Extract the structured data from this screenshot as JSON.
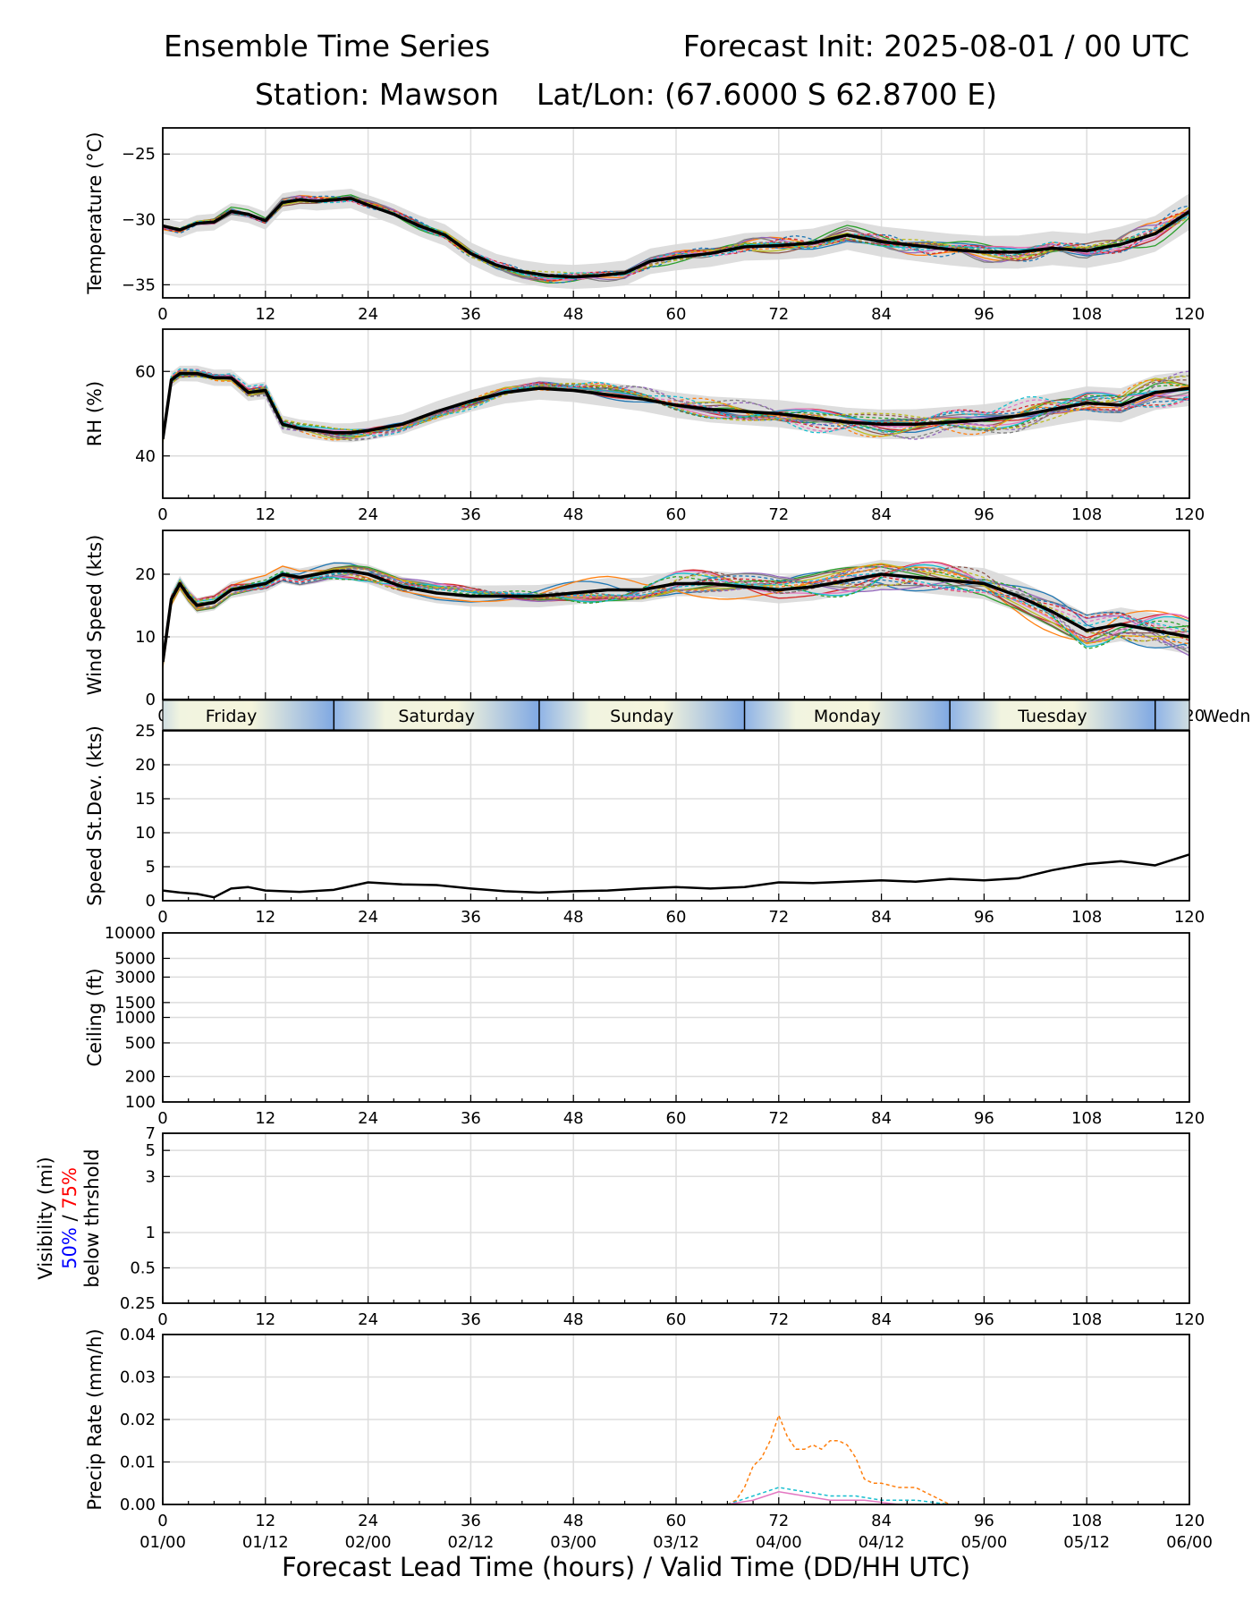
{
  "header": {
    "title_left": "Ensemble Time Series",
    "title_right": "Forecast Init: 2025-08-01 / 00 UTC",
    "station": "Station: Mawson",
    "latlon": "Lat/Lon: (67.6000 S 62.8700 E)"
  },
  "xlabel": "Forecast Lead Time (hours) / Valid Time (DD/HH UTC)",
  "day_band": {
    "labels": [
      "Friday",
      "Saturday",
      "Sunday",
      "Monday",
      "Tuesday",
      "Wedn"
    ],
    "boundaries_hours": [
      20,
      44,
      68,
      92,
      116
    ]
  },
  "colors": {
    "mean": "#000000",
    "spread": "#d9d9d9",
    "members": [
      "#1f77b4",
      "#ff7f0e",
      "#2ca02c",
      "#d62728",
      "#9467bd",
      "#8c564b",
      "#e377c2",
      "#7f7f7f",
      "#bcbd22",
      "#17becf"
    ],
    "vis_50": "#0000ff",
    "vis_75": "#ff0000"
  },
  "chart_data": [
    {
      "type": "line",
      "ylabel": "Temperature (°C)",
      "xlim": [
        0,
        120
      ],
      "ylim": [
        -36,
        -23
      ],
      "yticks": [
        -25,
        -30,
        -35
      ],
      "xticks": [
        0,
        12,
        24,
        36,
        48,
        60,
        72,
        84,
        96,
        108,
        120
      ],
      "grid": true,
      "mean": {
        "x": [
          0,
          2,
          4,
          6,
          8,
          10,
          12,
          14,
          16,
          18,
          20,
          22,
          24,
          27,
          30,
          33,
          36,
          39,
          42,
          45,
          48,
          51,
          54,
          57,
          60,
          64,
          68,
          72,
          76,
          80,
          84,
          88,
          92,
          96,
          100,
          104,
          108,
          112,
          116,
          120
        ],
        "y": [
          -30.5,
          -30.8,
          -30.3,
          -30.2,
          -29.4,
          -29.6,
          -30.1,
          -28.7,
          -28.5,
          -28.6,
          -28.5,
          -28.4,
          -28.9,
          -29.6,
          -30.5,
          -31.2,
          -32.6,
          -33.5,
          -34.0,
          -34.3,
          -34.4,
          -34.3,
          -34.1,
          -33.2,
          -32.9,
          -32.6,
          -32.1,
          -32.0,
          -31.8,
          -31.2,
          -31.7,
          -32.0,
          -32.3,
          -32.5,
          -32.5,
          -32.2,
          -32.4,
          -31.9,
          -31.1,
          -29.4
        ]
      },
      "spread_halfwidth": 1.0
    },
    {
      "type": "line",
      "ylabel": "RH (%)",
      "xlim": [
        0,
        120
      ],
      "ylim": [
        30,
        70
      ],
      "yticks": [
        40,
        60
      ],
      "xticks": [
        0,
        12,
        24,
        36,
        48,
        60,
        72,
        84,
        96,
        108,
        120
      ],
      "grid": true,
      "mean": {
        "x": [
          0,
          1,
          2,
          4,
          6,
          8,
          10,
          12,
          14,
          16,
          18,
          20,
          22,
          24,
          28,
          32,
          36,
          40,
          44,
          48,
          52,
          56,
          60,
          64,
          68,
          72,
          76,
          80,
          84,
          88,
          92,
          96,
          100,
          104,
          108,
          112,
          116,
          120
        ],
        "y": [
          44,
          58,
          59.5,
          59.5,
          58.5,
          58.5,
          55,
          55.5,
          47.5,
          46.5,
          46,
          45.5,
          45.5,
          46,
          47.5,
          50.5,
          53,
          55,
          56,
          55.5,
          54.5,
          53.5,
          52,
          51,
          50.5,
          50,
          49,
          48,
          47.5,
          47.5,
          48,
          48.5,
          49.5,
          51,
          52.5,
          52,
          55,
          56
        ]
      },
      "spread_halfwidth": 3.0
    },
    {
      "type": "line",
      "ylabel": "Wind Speed (kts)",
      "xlim": [
        0,
        120
      ],
      "ylim": [
        0,
        27
      ],
      "yticks": [
        0,
        10,
        20
      ],
      "xticks": [
        0,
        12,
        24,
        36,
        48,
        60,
        72,
        84,
        96,
        108,
        120
      ],
      "grid": true,
      "mean": {
        "x": [
          0,
          1,
          2,
          3,
          4,
          6,
          8,
          10,
          12,
          14,
          16,
          18,
          20,
          22,
          24,
          28,
          32,
          36,
          40,
          44,
          48,
          52,
          56,
          60,
          64,
          68,
          72,
          76,
          80,
          84,
          88,
          92,
          96,
          100,
          104,
          108,
          112,
          116,
          120
        ],
        "y": [
          6,
          16,
          18.5,
          16.5,
          15,
          15.5,
          17.5,
          18,
          18.5,
          20,
          19.5,
          20,
          20.5,
          20.5,
          20,
          18,
          17,
          16.5,
          16.5,
          16.5,
          17,
          17.5,
          17.5,
          18.5,
          18.5,
          18,
          17.5,
          18,
          19,
          20,
          19.5,
          19,
          18.5,
          16.5,
          14,
          11,
          12,
          11,
          10
        ]
      },
      "spread_halfwidth": 2.0
    },
    {
      "type": "line",
      "ylabel": "Speed St.Dev. (kts)",
      "xlim": [
        0,
        120
      ],
      "ylim": [
        0,
        25
      ],
      "yticks": [
        0,
        5,
        10,
        15,
        20,
        25
      ],
      "xticks": [
        0,
        12,
        24,
        36,
        48,
        60,
        72,
        84,
        96,
        108,
        120
      ],
      "grid": true,
      "mean": {
        "x": [
          0,
          2,
          4,
          6,
          8,
          10,
          12,
          16,
          20,
          24,
          28,
          32,
          36,
          40,
          44,
          48,
          52,
          56,
          60,
          64,
          68,
          72,
          76,
          80,
          84,
          88,
          92,
          96,
          100,
          104,
          108,
          112,
          116,
          120
        ],
        "y": [
          1.5,
          1.2,
          1.0,
          0.5,
          1.8,
          2.0,
          1.5,
          1.3,
          1.6,
          2.7,
          2.4,
          2.3,
          1.8,
          1.4,
          1.2,
          1.4,
          1.5,
          1.8,
          2.0,
          1.8,
          2.0,
          2.7,
          2.6,
          2.8,
          3.0,
          2.8,
          3.2,
          3.0,
          3.3,
          4.5,
          5.4,
          5.8,
          5.2,
          6.8
        ]
      }
    },
    {
      "type": "line",
      "ylabel": "Ceiling (ft)",
      "xlim": [
        0,
        120
      ],
      "ylim": [
        100,
        10000
      ],
      "yscale": "log",
      "yticks": [
        100,
        200,
        500,
        1000,
        1500,
        3000,
        5000,
        10000
      ],
      "xticks": [
        0,
        12,
        24,
        36,
        48,
        60,
        72,
        84,
        96,
        108,
        120
      ],
      "grid": true
    },
    {
      "type": "line",
      "ylabel": "Visibility (mi)",
      "ylabel_line2_a": "50%",
      "ylabel_line2_sep": " / ",
      "ylabel_line2_b": "75%",
      "ylabel_line3": "below thrshold",
      "xlim": [
        0,
        120
      ],
      "ylim": [
        0.25,
        7
      ],
      "yscale": "log",
      "yticks": [
        0.25,
        0.5,
        1,
        3,
        5,
        7
      ],
      "xticks": [
        0,
        12,
        24,
        36,
        48,
        60,
        72,
        84,
        96,
        108,
        120
      ],
      "grid": true
    },
    {
      "type": "line",
      "ylabel": "Precip Rate (mm/h)",
      "xlim": [
        0,
        120
      ],
      "ylim": [
        0,
        0.04
      ],
      "yticks": [
        0.0,
        0.01,
        0.02,
        0.03,
        0.04
      ],
      "ytick_labels": [
        "0.00",
        "0.01",
        "0.02",
        "0.03",
        "0.04"
      ],
      "xticks": [
        0,
        12,
        24,
        36,
        48,
        60,
        72,
        84,
        96,
        108,
        120
      ],
      "xtick_labels2": [
        "01/00",
        "01/12",
        "02/00",
        "02/12",
        "03/00",
        "03/12",
        "04/00",
        "04/12",
        "05/00",
        "05/12",
        "06/00"
      ],
      "grid": true,
      "series": [
        {
          "x": [
            66,
            67,
            68,
            69,
            70,
            71,
            72,
            73,
            74,
            75,
            76,
            77,
            78,
            79,
            80,
            81,
            82,
            83,
            84,
            86,
            88,
            90,
            92
          ],
          "y": [
            0,
            0.001,
            0.004,
            0.009,
            0.011,
            0.015,
            0.021,
            0.016,
            0.013,
            0.013,
            0.014,
            0.013,
            0.015,
            0.015,
            0.014,
            0.011,
            0.006,
            0.005,
            0.005,
            0.004,
            0.004,
            0.002,
            0
          ],
          "color_index": 1,
          "dashed": true
        },
        {
          "x": [
            66,
            69,
            72,
            75,
            78,
            81,
            84,
            88,
            92
          ],
          "y": [
            0,
            0.002,
            0.004,
            0.003,
            0.002,
            0.002,
            0.001,
            0.001,
            0
          ],
          "color_index": 9,
          "dashed": true
        },
        {
          "x": [
            66,
            69,
            72,
            75,
            78,
            82,
            86
          ],
          "y": [
            0,
            0.001,
            0.003,
            0.002,
            0.001,
            0.001,
            0
          ],
          "color_index": 6,
          "dashed": false
        }
      ]
    }
  ]
}
